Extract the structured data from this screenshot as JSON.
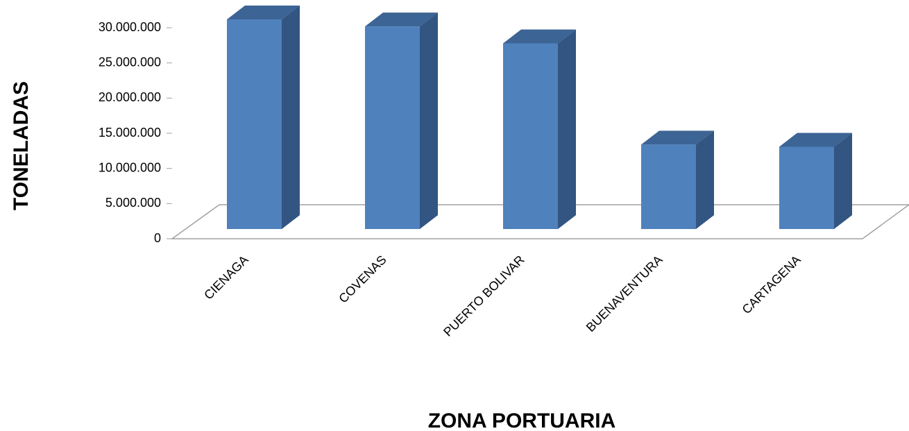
{
  "chart_data": {
    "type": "bar3d",
    "x_label": "ZONA PORTUARIA",
    "y_label": "TONELADAS",
    "categories": [
      "CIENAGA",
      "COVENAS",
      "PUERTO BOLIVAR",
      "BUENAVENTURA",
      "CARTAGENA"
    ],
    "values": [
      29800000,
      28800000,
      26400000,
      12000000,
      11700000
    ],
    "color": "#4f81bd",
    "ylim": [
      0,
      30000000
    ],
    "yticks": [
      0,
      {
        "value": 5000000,
        "label": "5.000.000"
      },
      {
        "value": 10000000,
        "label": "10.000.000"
      },
      {
        "value": 15000000,
        "label": "15.000.000"
      },
      {
        "value": 20000000,
        "label": "20.000.000"
      },
      {
        "value": 25000000,
        "label": "25.000.000"
      },
      {
        "value": 30000000,
        "label": "30.000.000"
      }
    ],
    "grid": false
  }
}
